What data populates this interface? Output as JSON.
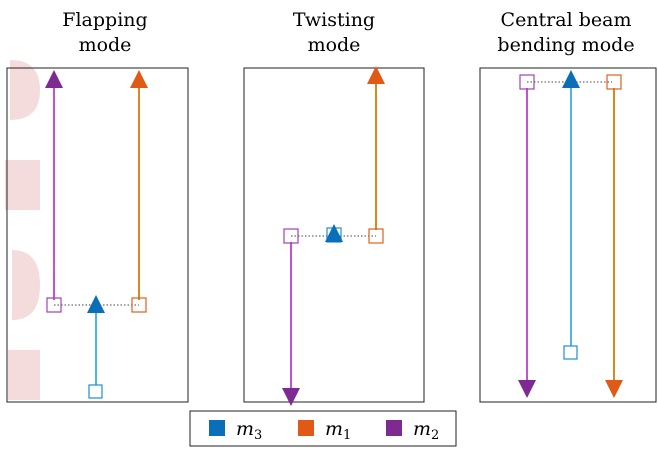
{
  "panels": [
    {
      "title_line1": "Flapping",
      "title_line2": "mode"
    },
    {
      "title_line1": "Twisting",
      "title_line2": "mode"
    },
    {
      "title_line1": "Central beam",
      "title_line2": "bending mode"
    }
  ],
  "legend": [
    {
      "label": "m",
      "sub": "3",
      "color": "#1f77b4"
    },
    {
      "label": "m",
      "sub": "1",
      "color": "#e0601f"
    },
    {
      "label": "m",
      "sub": "2",
      "color": "#7b2d91"
    }
  ],
  "colors": {
    "m3_marker": "#0a6fb8",
    "m3_line": "#4fb6e6",
    "m1_marker": "#e05a16",
    "m1_line": "#d98a1c",
    "m2_marker": "#7f2a93",
    "m2_line": "#c450d6",
    "watermark": "#f3d9da"
  },
  "icons": {
    "watermark": "faint-letters-watermark"
  }
}
